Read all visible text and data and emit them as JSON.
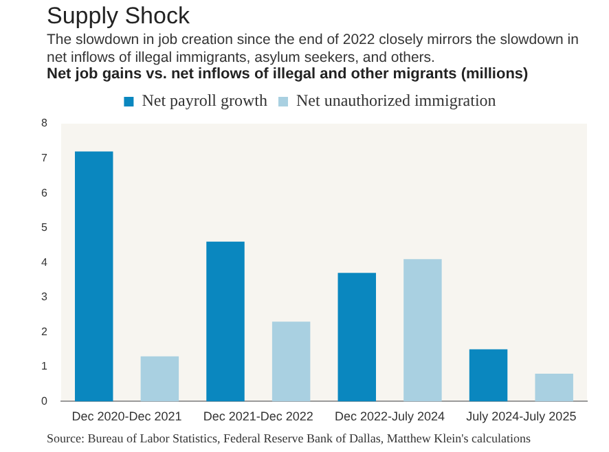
{
  "chart_data": {
    "type": "bar",
    "title": "Supply Shock",
    "subtitle": "The slowdown in job creation since the end of 2022 closely mirrors the slowdown in net inflows of illegal immigrants, asylum seekers, and others.",
    "ylabel": "Net job gains vs. net inflows of illegal and other migrants (millions)",
    "annotations": [
      "Source: Bureau of Labor Statistics, Federal Reserve Bank of Dallas, Matthew Klein's calculations"
    ],
    "categories": [
      "Dec 2020-Dec 2021",
      "Dec 2021-Dec 2022",
      "Dec 2022-July 2024",
      "July 2024-July 2025"
    ],
    "series": [
      {
        "name": "Net payroll growth",
        "color": "#0a87bf",
        "values": [
          7.2,
          4.6,
          3.7,
          1.5
        ]
      },
      {
        "name": "Net unauthorized immigration",
        "color": "#a9d0e1",
        "values": [
          1.3,
          2.3,
          4.1,
          0.8
        ]
      }
    ],
    "ylim": [
      0,
      8
    ],
    "yticks": [
      0,
      1,
      2,
      3,
      4,
      5,
      6,
      7,
      8
    ],
    "grid": false,
    "legend": "top"
  }
}
